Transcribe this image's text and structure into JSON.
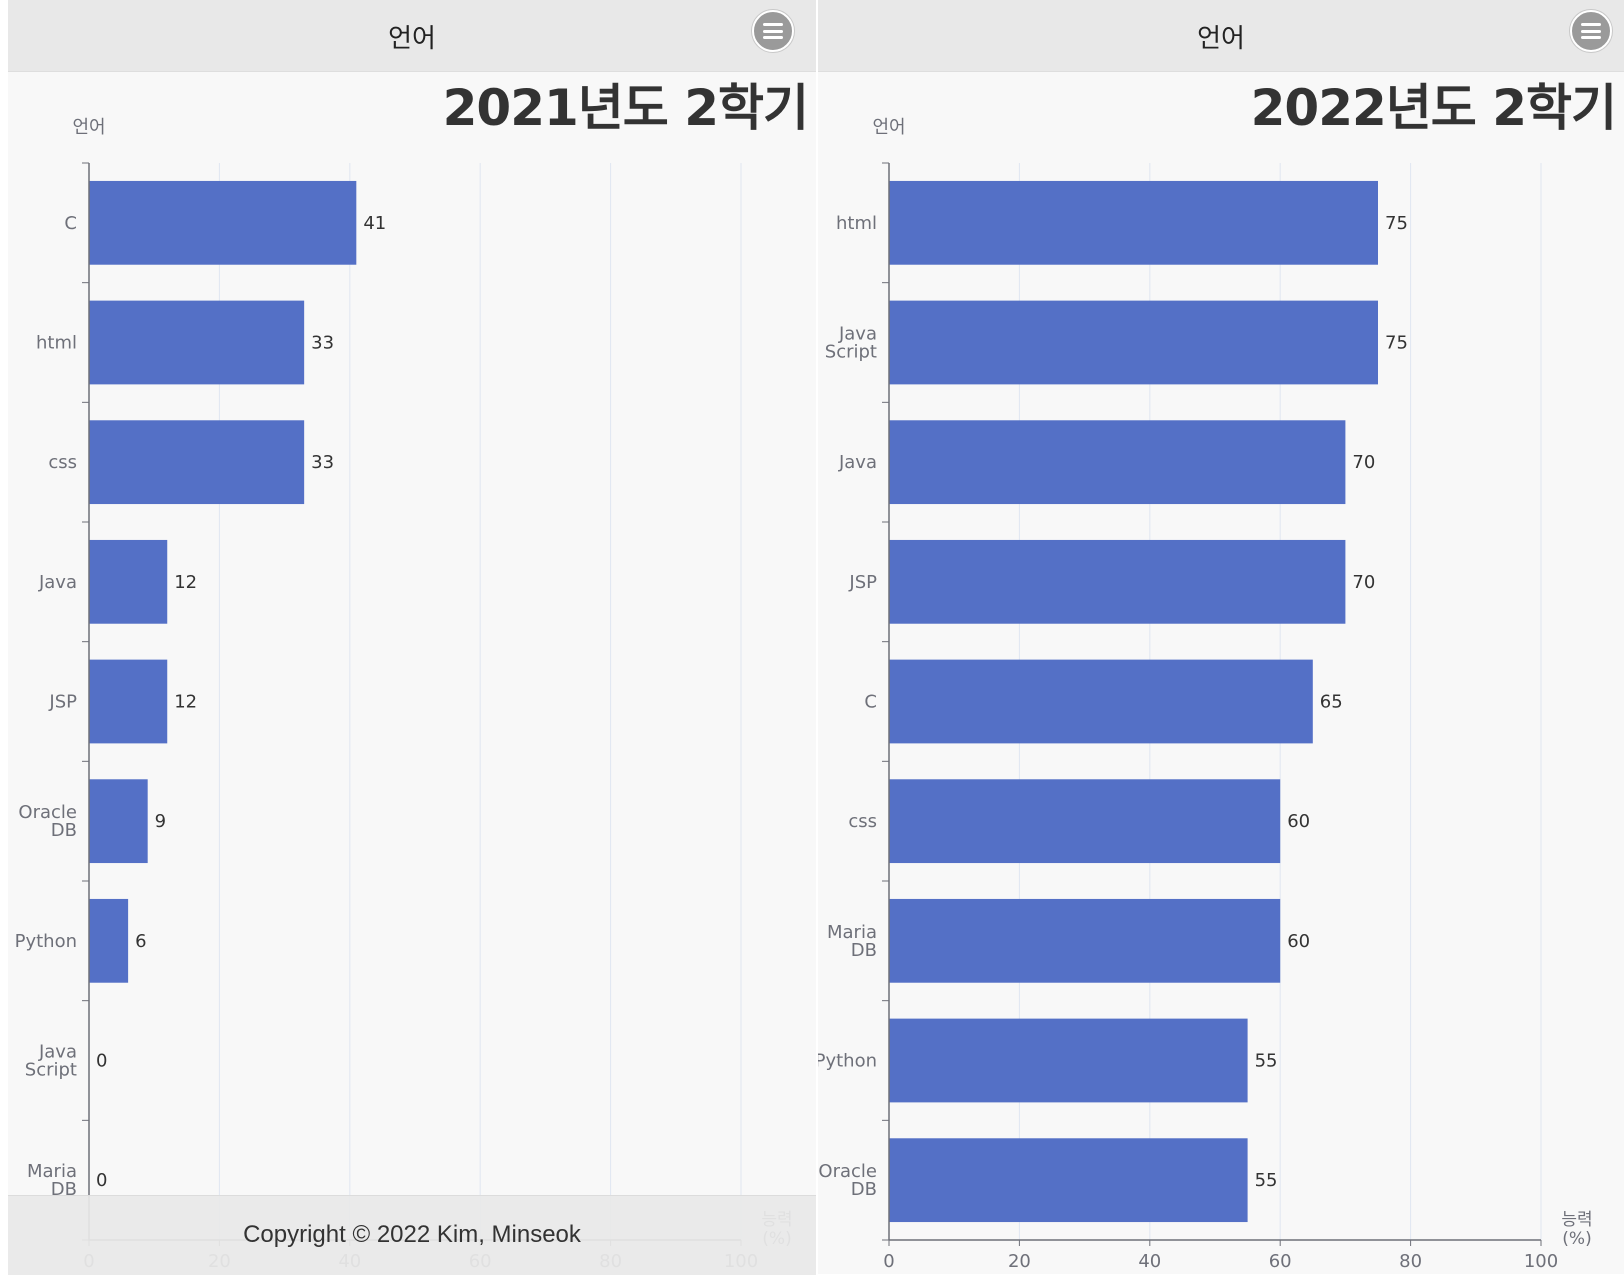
{
  "panels": [
    {
      "header_title": "언어",
      "title": "2021년도 2학기",
      "chart_data": {
        "type": "bar",
        "orientation": "horizontal",
        "title": "2021년도 2학기",
        "category_axis_label": "언어",
        "value_axis_label": "능력 (%)",
        "categories": [
          "C",
          "html",
          "css",
          "Java",
          "JSP",
          "Oracle DB",
          "Python",
          "Java Script",
          "Maria DB"
        ],
        "values": [
          41,
          33,
          33,
          12,
          12,
          9,
          6,
          0,
          0
        ],
        "xlim": [
          0,
          100
        ],
        "ticks": [
          0,
          20,
          40,
          60,
          80,
          100
        ],
        "data_labels": true,
        "grid": true,
        "bar_color": "#5470c6"
      }
    },
    {
      "header_title": "언어",
      "title": "2022년도 2학기",
      "chart_data": {
        "type": "bar",
        "orientation": "horizontal",
        "title": "2022년도 2학기",
        "category_axis_label": "언어",
        "value_axis_label": "능력 (%)",
        "categories": [
          "html",
          "Java Script",
          "Java",
          "JSP",
          "C",
          "css",
          "Maria DB",
          "Python",
          "Oracle DB"
        ],
        "values": [
          75,
          75,
          70,
          70,
          65,
          60,
          60,
          55,
          55
        ],
        "xlim": [
          0,
          100
        ],
        "ticks": [
          0,
          20,
          40,
          60,
          80,
          100
        ],
        "data_labels": true,
        "grid": true,
        "bar_color": "#5470c6"
      }
    }
  ],
  "footer": {
    "text": "Copyright © 2022 Kim, Minseok"
  }
}
